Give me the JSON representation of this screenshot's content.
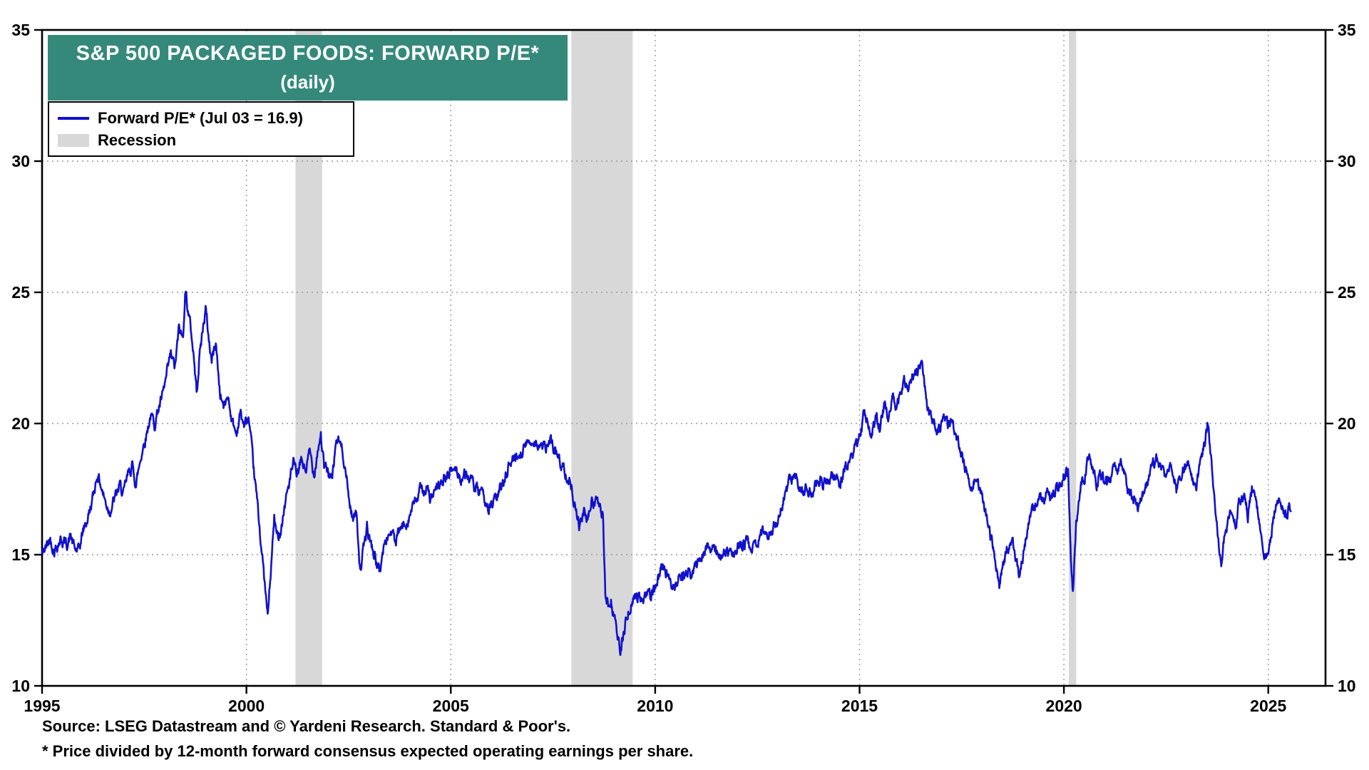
{
  "title": {
    "line1": "S&P 500 PACKAGED FOODS: FORWARD P/E*",
    "line2": "(daily)"
  },
  "legend": {
    "series_label": "Forward P/E* (Jul 03 = 16.9)",
    "recession_label": "Recession"
  },
  "footer": {
    "source": "Source: LSEG Datastream and © Yardeni Research. Standard & Poor's.",
    "footnote": "* Price divided by 12-month forward consensus expected operating earnings per share."
  },
  "colors": {
    "line": "#1111CC",
    "recession_band": "#D8D8D8",
    "title_bg": "#35897B",
    "grid": "#999999",
    "axis": "#000000"
  },
  "chart_data": {
    "type": "line",
    "title": "S&P 500 PACKAGED FOODS: FORWARD P/E* (daily)",
    "xlabel": "",
    "ylabel": "Forward P/E",
    "x_range": [
      1995,
      2026.4
    ],
    "y_range": [
      10,
      35
    ],
    "x_ticks": [
      1995,
      2000,
      2005,
      2010,
      2015,
      2020,
      2025
    ],
    "y_ticks": [
      10,
      15,
      20,
      25,
      30,
      35
    ],
    "grid": true,
    "legend_position": "top-left",
    "latest_value": 16.9,
    "latest_label": "Jul 03 = 16.9",
    "recession_bands": [
      [
        2001.2,
        2001.85
      ],
      [
        2007.95,
        2009.45
      ],
      [
        2020.12,
        2020.3
      ]
    ],
    "series": [
      {
        "name": "Forward P/E* (Jul 03 = 16.9)",
        "points": [
          [
            1995.0,
            15.0
          ],
          [
            1995.1,
            15.3
          ],
          [
            1995.2,
            15.6
          ],
          [
            1995.3,
            15.2
          ],
          [
            1995.45,
            15.6
          ],
          [
            1995.6,
            15.4
          ],
          [
            1995.7,
            15.7
          ],
          [
            1995.8,
            15.2
          ],
          [
            1995.9,
            15.1
          ],
          [
            1996.0,
            15.9
          ],
          [
            1996.1,
            16.3
          ],
          [
            1996.25,
            17.2
          ],
          [
            1996.35,
            18.1
          ],
          [
            1996.45,
            17.6
          ],
          [
            1996.55,
            17.0
          ],
          [
            1996.65,
            16.7
          ],
          [
            1996.8,
            17.2
          ],
          [
            1996.9,
            17.6
          ],
          [
            1997.0,
            17.3
          ],
          [
            1997.1,
            18.0
          ],
          [
            1997.2,
            18.4
          ],
          [
            1997.3,
            17.7
          ],
          [
            1997.45,
            19.0
          ],
          [
            1997.55,
            19.6
          ],
          [
            1997.65,
            20.3
          ],
          [
            1997.75,
            20.0
          ],
          [
            1997.85,
            20.6
          ],
          [
            1997.95,
            21.0
          ],
          [
            1998.05,
            21.8
          ],
          [
            1998.15,
            22.6
          ],
          [
            1998.25,
            22.1
          ],
          [
            1998.35,
            23.6
          ],
          [
            1998.45,
            23.2
          ],
          [
            1998.5,
            25.2
          ],
          [
            1998.55,
            24.6
          ],
          [
            1998.62,
            23.8
          ],
          [
            1998.7,
            22.8
          ],
          [
            1998.78,
            21.2
          ],
          [
            1998.85,
            22.6
          ],
          [
            1998.95,
            23.8
          ],
          [
            1999.0,
            24.4
          ],
          [
            1999.08,
            23.2
          ],
          [
            1999.15,
            22.4
          ],
          [
            1999.25,
            23.1
          ],
          [
            1999.35,
            21.2
          ],
          [
            1999.45,
            20.6
          ],
          [
            1999.55,
            21.1
          ],
          [
            1999.65,
            20.1
          ],
          [
            1999.75,
            19.6
          ],
          [
            1999.85,
            20.4
          ],
          [
            1999.95,
            19.9
          ],
          [
            2000.05,
            20.2
          ],
          [
            2000.15,
            18.6
          ],
          [
            2000.25,
            17.2
          ],
          [
            2000.35,
            15.6
          ],
          [
            2000.45,
            13.8
          ],
          [
            2000.52,
            12.6
          ],
          [
            2000.6,
            14.4
          ],
          [
            2000.68,
            16.4
          ],
          [
            2000.75,
            15.6
          ],
          [
            2000.85,
            16.1
          ],
          [
            2000.95,
            17.0
          ],
          [
            2001.05,
            17.8
          ],
          [
            2001.15,
            18.4
          ],
          [
            2001.25,
            18.0
          ],
          [
            2001.35,
            18.6
          ],
          [
            2001.45,
            18.2
          ],
          [
            2001.55,
            18.9
          ],
          [
            2001.65,
            18.1
          ],
          [
            2001.75,
            19.1
          ],
          [
            2001.82,
            19.6
          ],
          [
            2001.9,
            18.3
          ],
          [
            2002.0,
            18.2
          ],
          [
            2002.1,
            17.8
          ],
          [
            2002.2,
            19.4
          ],
          [
            2002.3,
            19.2
          ],
          [
            2002.4,
            18.6
          ],
          [
            2002.5,
            17.2
          ],
          [
            2002.6,
            16.4
          ],
          [
            2002.7,
            16.6
          ],
          [
            2002.78,
            14.4
          ],
          [
            2002.88,
            15.3
          ],
          [
            2002.95,
            16.0
          ],
          [
            2003.05,
            15.4
          ],
          [
            2003.15,
            14.9
          ],
          [
            2003.25,
            14.3
          ],
          [
            2003.35,
            15.2
          ],
          [
            2003.45,
            15.7
          ],
          [
            2003.55,
            15.9
          ],
          [
            2003.65,
            15.4
          ],
          [
            2003.75,
            15.9
          ],
          [
            2003.85,
            16.1
          ],
          [
            2003.95,
            16.4
          ],
          [
            2004.1,
            16.9
          ],
          [
            2004.25,
            17.4
          ],
          [
            2004.4,
            17.6
          ],
          [
            2004.5,
            17.1
          ],
          [
            2004.65,
            17.4
          ],
          [
            2004.8,
            17.8
          ],
          [
            2004.95,
            18.1
          ],
          [
            2005.1,
            18.3
          ],
          [
            2005.25,
            17.9
          ],
          [
            2005.4,
            18.1
          ],
          [
            2005.55,
            17.6
          ],
          [
            2005.7,
            17.3
          ],
          [
            2005.85,
            17.0
          ],
          [
            2005.95,
            16.8
          ],
          [
            2006.1,
            17.1
          ],
          [
            2006.25,
            17.6
          ],
          [
            2006.4,
            18.4
          ],
          [
            2006.55,
            18.7
          ],
          [
            2006.7,
            18.9
          ],
          [
            2006.85,
            19.2
          ],
          [
            2007.0,
            19.4
          ],
          [
            2007.15,
            19.2
          ],
          [
            2007.3,
            19.0
          ],
          [
            2007.45,
            19.3
          ],
          [
            2007.55,
            19.0
          ],
          [
            2007.7,
            18.4
          ],
          [
            2007.85,
            18.1
          ],
          [
            2007.95,
            17.6
          ],
          [
            2008.05,
            16.9
          ],
          [
            2008.15,
            16.1
          ],
          [
            2008.25,
            16.6
          ],
          [
            2008.35,
            16.3
          ],
          [
            2008.45,
            17.0
          ],
          [
            2008.55,
            17.1
          ],
          [
            2008.65,
            16.7
          ],
          [
            2008.72,
            16.4
          ],
          [
            2008.78,
            13.6
          ],
          [
            2008.85,
            13.0
          ],
          [
            2008.92,
            13.3
          ],
          [
            2009.0,
            12.6
          ],
          [
            2009.08,
            12.0
          ],
          [
            2009.15,
            11.2
          ],
          [
            2009.22,
            11.9
          ],
          [
            2009.3,
            12.6
          ],
          [
            2009.4,
            13.1
          ],
          [
            2009.5,
            13.4
          ],
          [
            2009.6,
            13.5
          ],
          [
            2009.7,
            13.3
          ],
          [
            2009.8,
            13.6
          ],
          [
            2009.9,
            13.4
          ],
          [
            2010.0,
            13.8
          ],
          [
            2010.15,
            14.4
          ],
          [
            2010.3,
            14.2
          ],
          [
            2010.45,
            13.9
          ],
          [
            2010.6,
            14.1
          ],
          [
            2010.75,
            14.3
          ],
          [
            2010.9,
            14.2
          ],
          [
            2011.0,
            14.6
          ],
          [
            2011.15,
            15.1
          ],
          [
            2011.3,
            15.4
          ],
          [
            2011.45,
            15.1
          ],
          [
            2011.6,
            14.9
          ],
          [
            2011.75,
            15.1
          ],
          [
            2011.9,
            15.0
          ],
          [
            2012.05,
            15.3
          ],
          [
            2012.2,
            15.5
          ],
          [
            2012.35,
            15.2
          ],
          [
            2012.5,
            15.6
          ],
          [
            2012.65,
            15.8
          ],
          [
            2012.8,
            15.9
          ],
          [
            2012.95,
            16.2
          ],
          [
            2013.1,
            16.9
          ],
          [
            2013.25,
            17.6
          ],
          [
            2013.4,
            18.1
          ],
          [
            2013.5,
            17.7
          ],
          [
            2013.65,
            17.5
          ],
          [
            2013.8,
            17.4
          ],
          [
            2013.95,
            17.6
          ],
          [
            2014.1,
            17.8
          ],
          [
            2014.25,
            17.9
          ],
          [
            2014.4,
            18.0
          ],
          [
            2014.5,
            17.6
          ],
          [
            2014.65,
            18.3
          ],
          [
            2014.8,
            18.7
          ],
          [
            2014.95,
            19.2
          ],
          [
            2015.05,
            19.8
          ],
          [
            2015.12,
            20.6
          ],
          [
            2015.2,
            20.1
          ],
          [
            2015.3,
            19.8
          ],
          [
            2015.4,
            20.3
          ],
          [
            2015.5,
            19.8
          ],
          [
            2015.6,
            20.7
          ],
          [
            2015.7,
            20.3
          ],
          [
            2015.8,
            21.0
          ],
          [
            2015.9,
            20.6
          ],
          [
            2016.0,
            21.0
          ],
          [
            2016.1,
            21.5
          ],
          [
            2016.2,
            21.2
          ],
          [
            2016.3,
            21.7
          ],
          [
            2016.4,
            22.0
          ],
          [
            2016.5,
            22.3
          ],
          [
            2016.58,
            21.6
          ],
          [
            2016.65,
            20.8
          ],
          [
            2016.75,
            20.3
          ],
          [
            2016.85,
            20.0
          ],
          [
            2016.95,
            19.8
          ],
          [
            2017.05,
            20.2
          ],
          [
            2017.15,
            19.9
          ],
          [
            2017.25,
            20.1
          ],
          [
            2017.35,
            19.5
          ],
          [
            2017.45,
            19.1
          ],
          [
            2017.55,
            18.6
          ],
          [
            2017.65,
            18.1
          ],
          [
            2017.75,
            17.6
          ],
          [
            2017.85,
            18.0
          ],
          [
            2017.95,
            17.4
          ],
          [
            2018.05,
            16.9
          ],
          [
            2018.15,
            16.0
          ],
          [
            2018.25,
            15.4
          ],
          [
            2018.35,
            14.6
          ],
          [
            2018.42,
            13.9
          ],
          [
            2018.5,
            14.6
          ],
          [
            2018.6,
            15.2
          ],
          [
            2018.7,
            15.5
          ],
          [
            2018.8,
            15.1
          ],
          [
            2018.9,
            14.2
          ],
          [
            2018.98,
            14.8
          ],
          [
            2019.1,
            15.9
          ],
          [
            2019.2,
            16.5
          ],
          [
            2019.3,
            16.9
          ],
          [
            2019.4,
            17.2
          ],
          [
            2019.5,
            17.0
          ],
          [
            2019.6,
            17.4
          ],
          [
            2019.7,
            17.2
          ],
          [
            2019.8,
            17.5
          ],
          [
            2019.9,
            17.7
          ],
          [
            2020.0,
            18.0
          ],
          [
            2020.1,
            18.2
          ],
          [
            2020.17,
            15.0
          ],
          [
            2020.22,
            13.6
          ],
          [
            2020.3,
            16.2
          ],
          [
            2020.4,
            17.4
          ],
          [
            2020.5,
            18.0
          ],
          [
            2020.6,
            18.7
          ],
          [
            2020.7,
            18.4
          ],
          [
            2020.8,
            17.8
          ],
          [
            2020.9,
            18.1
          ],
          [
            2021.0,
            17.6
          ],
          [
            2021.1,
            17.9
          ],
          [
            2021.2,
            18.4
          ],
          [
            2021.3,
            18.1
          ],
          [
            2021.4,
            18.4
          ],
          [
            2021.5,
            17.9
          ],
          [
            2021.6,
            17.4
          ],
          [
            2021.7,
            17.0
          ],
          [
            2021.8,
            16.8
          ],
          [
            2021.9,
            17.3
          ],
          [
            2022.0,
            17.6
          ],
          [
            2022.1,
            18.1
          ],
          [
            2022.2,
            18.5
          ],
          [
            2022.3,
            18.7
          ],
          [
            2022.4,
            18.2
          ],
          [
            2022.5,
            17.8
          ],
          [
            2022.6,
            18.4
          ],
          [
            2022.7,
            18.0
          ],
          [
            2022.75,
            17.5
          ],
          [
            2022.85,
            17.8
          ],
          [
            2022.95,
            18.3
          ],
          [
            2023.05,
            18.4
          ],
          [
            2023.15,
            17.9
          ],
          [
            2023.25,
            17.8
          ],
          [
            2023.35,
            18.4
          ],
          [
            2023.45,
            19.2
          ],
          [
            2023.52,
            20.0
          ],
          [
            2023.6,
            18.6
          ],
          [
            2023.7,
            16.9
          ],
          [
            2023.78,
            15.4
          ],
          [
            2023.85,
            14.6
          ],
          [
            2023.92,
            15.6
          ],
          [
            2024.0,
            16.1
          ],
          [
            2024.1,
            16.6
          ],
          [
            2024.2,
            16.2
          ],
          [
            2024.3,
            17.0
          ],
          [
            2024.4,
            17.3
          ],
          [
            2024.5,
            16.5
          ],
          [
            2024.6,
            17.4
          ],
          [
            2024.7,
            17.1
          ],
          [
            2024.8,
            16.0
          ],
          [
            2024.88,
            15.4
          ],
          [
            2024.95,
            14.8
          ],
          [
            2025.05,
            15.6
          ],
          [
            2025.15,
            16.6
          ],
          [
            2025.25,
            17.1
          ],
          [
            2025.35,
            16.7
          ],
          [
            2025.45,
            16.6
          ],
          [
            2025.55,
            16.9
          ]
        ]
      }
    ]
  }
}
